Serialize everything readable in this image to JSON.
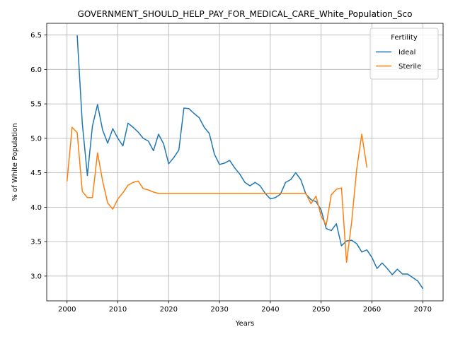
{
  "chart_data": {
    "type": "line",
    "title": "GOVERNMENT_SHOULD_HELP_PAY_FOR_MEDICAL_CARE_White_Population_Sco",
    "xlabel": "Years",
    "ylabel": "% of White Population",
    "xlim": [
      1996,
      2074
    ],
    "ylim": [
      2.64,
      6.67
    ],
    "xticks": [
      2000,
      2010,
      2020,
      2030,
      2040,
      2050,
      2060,
      2070
    ],
    "yticks": [
      3.0,
      3.5,
      4.0,
      4.5,
      5.0,
      5.5,
      6.0,
      6.5
    ],
    "grid": true,
    "legend": {
      "title": "Fertility",
      "position": "top-right"
    },
    "series": [
      {
        "name": "Ideal",
        "color": "#1f77b4",
        "x": [
          2002,
          2003,
          2004,
          2005,
          2006,
          2007,
          2008,
          2009,
          2010,
          2011,
          2012,
          2013,
          2014,
          2015,
          2016,
          2017,
          2018,
          2019,
          2020,
          2021,
          2022,
          2023,
          2024,
          2025,
          2026,
          2027,
          2028,
          2029,
          2030,
          2031,
          2032,
          2033,
          2034,
          2035,
          2036,
          2037,
          2038,
          2039,
          2040,
          2041,
          2042,
          2043,
          2044,
          2045,
          2046,
          2047,
          2048,
          2049,
          2050,
          2051,
          2052,
          2053,
          2054,
          2055,
          2056,
          2057,
          2058,
          2059,
          2060,
          2061,
          2062,
          2063,
          2064,
          2065,
          2066,
          2067,
          2068,
          2069,
          2070
        ],
        "values": [
          6.49,
          5.22,
          4.46,
          5.18,
          5.49,
          5.12,
          4.93,
          5.14,
          5.0,
          4.89,
          5.22,
          5.16,
          5.09,
          5.0,
          4.96,
          4.82,
          5.06,
          4.92,
          4.63,
          4.72,
          4.83,
          5.44,
          5.43,
          5.36,
          5.3,
          5.16,
          5.07,
          4.77,
          4.62,
          4.64,
          4.68,
          4.57,
          4.48,
          4.36,
          4.31,
          4.36,
          4.31,
          4.2,
          4.12,
          4.14,
          4.19,
          4.36,
          4.4,
          4.5,
          4.4,
          4.19,
          4.11,
          4.08,
          3.96,
          3.69,
          3.66,
          3.76,
          3.44,
          3.51,
          3.52,
          3.47,
          3.35,
          3.38,
          3.27,
          3.11,
          3.19,
          3.11,
          3.02,
          3.1,
          3.03,
          3.03,
          2.98,
          2.93,
          2.82
        ]
      },
      {
        "name": "Sterile",
        "color": "#ff7f0e",
        "x": [
          2000,
          2001,
          2002,
          2003,
          2004,
          2005,
          2006,
          2007,
          2008,
          2009,
          2010,
          2011,
          2012,
          2013,
          2014,
          2015,
          2016,
          2017,
          2018,
          2019,
          2020,
          2021,
          2022,
          2023,
          2024,
          2025,
          2026,
          2027,
          2028,
          2029,
          2030,
          2031,
          2032,
          2033,
          2034,
          2035,
          2036,
          2037,
          2038,
          2039,
          2040,
          2041,
          2042,
          2043,
          2044,
          2045,
          2046,
          2047,
          2048,
          2049,
          2050,
          2051,
          2052,
          2053,
          2054,
          2055,
          2056,
          2057,
          2058,
          2059
        ],
        "values": [
          4.38,
          5.16,
          5.08,
          4.23,
          4.14,
          4.14,
          4.79,
          4.38,
          4.06,
          3.97,
          4.12,
          4.21,
          4.32,
          4.36,
          4.38,
          4.27,
          4.25,
          4.22,
          4.2,
          4.2,
          4.2,
          4.2,
          4.2,
          4.2,
          4.2,
          4.2,
          4.2,
          4.2,
          4.2,
          4.2,
          4.2,
          4.2,
          4.2,
          4.2,
          4.2,
          4.2,
          4.2,
          4.2,
          4.2,
          4.2,
          4.2,
          4.2,
          4.2,
          4.2,
          4.2,
          4.2,
          4.2,
          4.2,
          4.05,
          4.16,
          3.87,
          3.74,
          4.18,
          4.26,
          4.28,
          3.2,
          3.78,
          4.55,
          5.06,
          4.58
        ]
      }
    ]
  }
}
